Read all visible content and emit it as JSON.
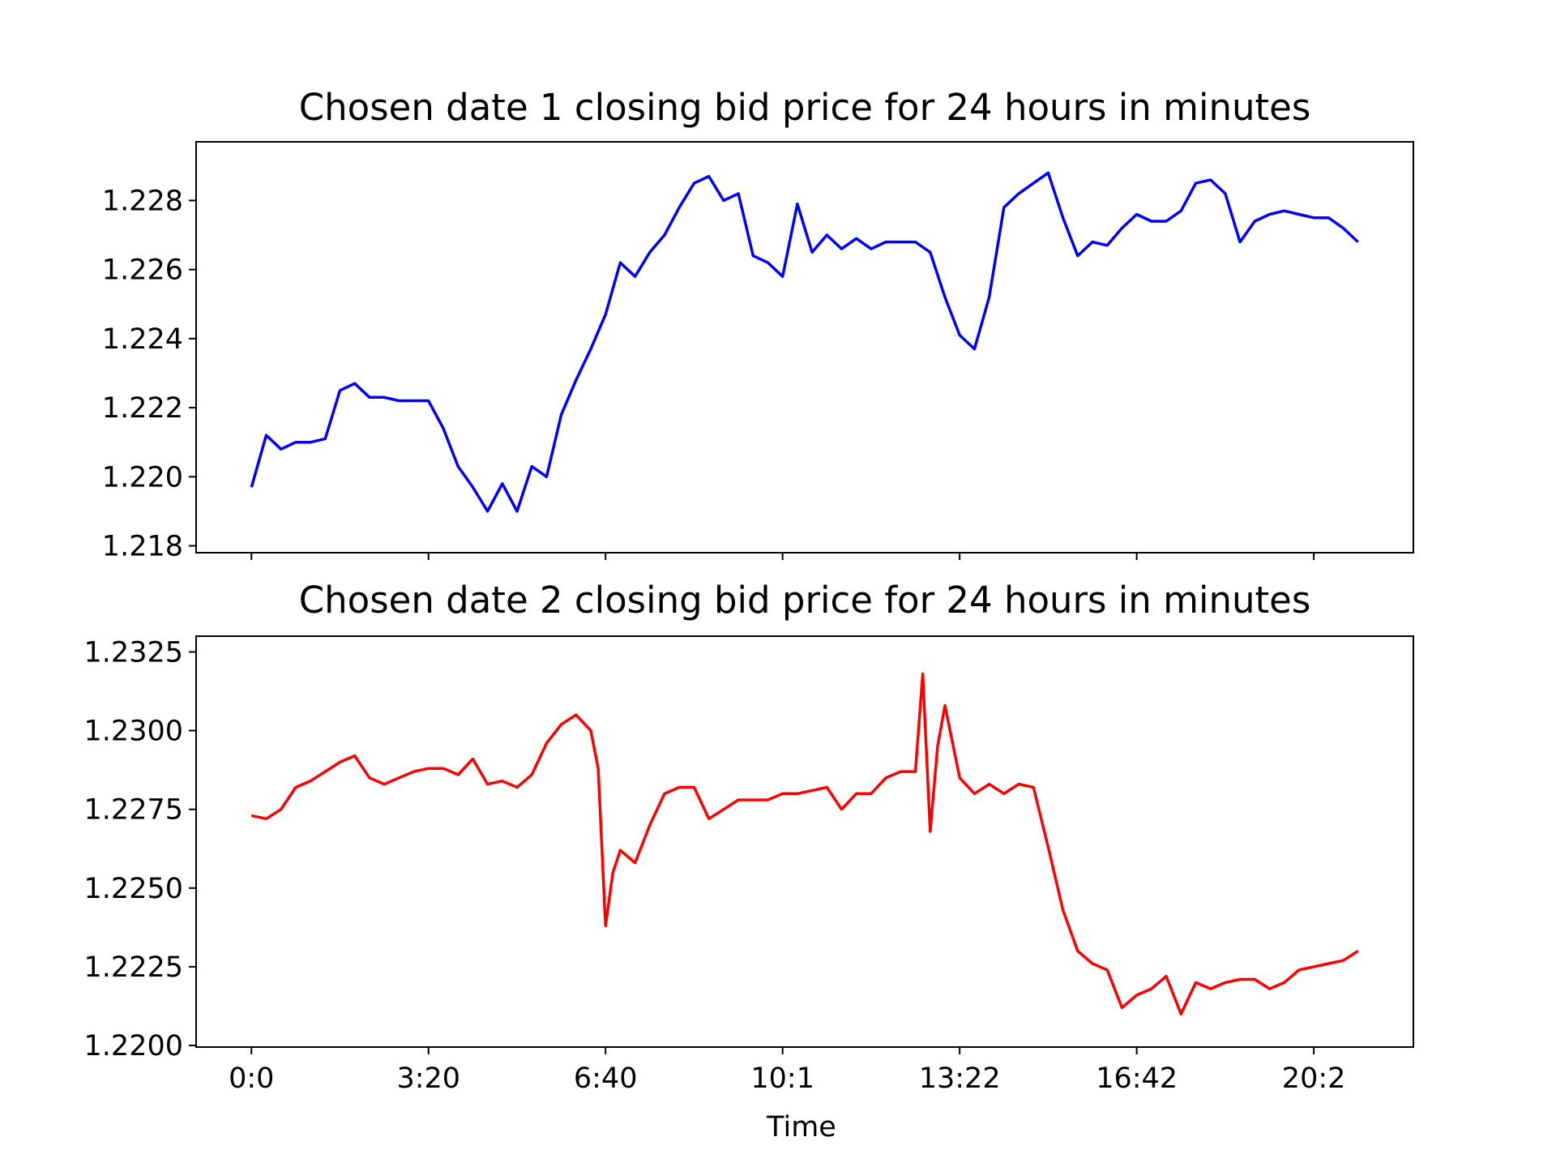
{
  "chart_data": [
    {
      "type": "line",
      "title": "Chosen date 1 closing bid price for 24 hours in minutes",
      "xlabel": "",
      "ylabel": "",
      "color": "#0000ff",
      "x_unit": "minutes",
      "xlim": [
        -75,
        1575
      ],
      "ylim": [
        1.2178,
        1.2297
      ],
      "yticks": [
        "1.218",
        "1.220",
        "1.222",
        "1.224",
        "1.226",
        "1.228"
      ],
      "ytick_values": [
        1.218,
        1.22,
        1.222,
        1.224,
        1.226,
        1.228
      ],
      "xtick_values": [
        0,
        240,
        480,
        720,
        960,
        1200,
        1440
      ],
      "xtick_labels_visible": false,
      "x": [
        0,
        20,
        40,
        60,
        80,
        100,
        120,
        140,
        160,
        180,
        200,
        220,
        240,
        260,
        280,
        300,
        320,
        340,
        360,
        380,
        400,
        420,
        440,
        460,
        480,
        500,
        520,
        540,
        560,
        580,
        600,
        620,
        640,
        660,
        680,
        700,
        720,
        740,
        760,
        780,
        800,
        820,
        840,
        860,
        880,
        900,
        920,
        940,
        960,
        980,
        1000,
        1020,
        1040,
        1060,
        1080,
        1100,
        1120,
        1140,
        1160,
        1180,
        1200,
        1220,
        1240,
        1260,
        1280,
        1300,
        1320,
        1340,
        1360,
        1380,
        1400,
        1420,
        1440,
        1460,
        1480,
        1500
      ],
      "y": [
        1.2197,
        1.2212,
        1.2208,
        1.221,
        1.221,
        1.2211,
        1.2225,
        1.2227,
        1.2223,
        1.2223,
        1.2222,
        1.2222,
        1.2222,
        1.2214,
        1.2203,
        1.2197,
        1.219,
        1.2198,
        1.219,
        1.2203,
        1.22,
        1.2218,
        1.2228,
        1.2237,
        1.2247,
        1.2262,
        1.2258,
        1.2265,
        1.227,
        1.2278,
        1.2285,
        1.2287,
        1.228,
        1.2282,
        1.2264,
        1.2262,
        1.2258,
        1.2279,
        1.2265,
        1.227,
        1.2266,
        1.2269,
        1.2266,
        1.2268,
        1.2268,
        1.2268,
        1.2265,
        1.2252,
        1.2241,
        1.2237,
        1.2252,
        1.2278,
        1.2282,
        1.2285,
        1.2288,
        1.2275,
        1.2264,
        1.2268,
        1.2267,
        1.2272,
        1.2276,
        1.2274,
        1.2274,
        1.2277,
        1.2285,
        1.2286,
        1.2282,
        1.2268,
        1.2274,
        1.2276,
        1.2277,
        1.2276,
        1.2275,
        1.2275,
        1.2272,
        1.2268
      ]
    },
    {
      "type": "line",
      "title": "Chosen date 2 closing bid price for 24 hours in minutes",
      "xlabel": "Time",
      "ylabel": "",
      "color": "#ff0000",
      "x_unit": "minutes",
      "xlim": [
        -75,
        1575
      ],
      "ylim": [
        1.21995,
        1.233
      ],
      "yticks": [
        "1.2200",
        "1.2225",
        "1.2250",
        "1.2275",
        "1.2300",
        "1.2325"
      ],
      "ytick_values": [
        1.22,
        1.2225,
        1.225,
        1.2275,
        1.23,
        1.2325
      ],
      "xtick_values": [
        0,
        240,
        480,
        720,
        960,
        1200,
        1440
      ],
      "xtick_labels": [
        "0:0",
        "3:20",
        "6:40",
        "10:1",
        "13:22",
        "16:42",
        "20:2"
      ],
      "x": [
        0,
        20,
        40,
        60,
        80,
        100,
        120,
        140,
        160,
        180,
        200,
        220,
        240,
        260,
        280,
        300,
        320,
        340,
        360,
        380,
        400,
        420,
        440,
        460,
        470,
        480,
        490,
        500,
        520,
        540,
        560,
        580,
        600,
        620,
        640,
        660,
        680,
        700,
        720,
        740,
        760,
        780,
        800,
        820,
        840,
        860,
        880,
        900,
        910,
        920,
        930,
        940,
        960,
        980,
        1000,
        1020,
        1040,
        1060,
        1080,
        1100,
        1120,
        1140,
        1160,
        1180,
        1200,
        1220,
        1240,
        1260,
        1280,
        1300,
        1320,
        1340,
        1360,
        1380,
        1400,
        1420,
        1440,
        1460,
        1480,
        1500
      ],
      "y": [
        1.2273,
        1.2272,
        1.2275,
        1.2282,
        1.2284,
        1.2287,
        1.229,
        1.2292,
        1.2285,
        1.2283,
        1.2285,
        1.2287,
        1.2288,
        1.2288,
        1.2286,
        1.2291,
        1.2283,
        1.2284,
        1.2282,
        1.2286,
        1.2296,
        1.2302,
        1.2305,
        1.23,
        1.2288,
        1.2238,
        1.2255,
        1.2262,
        1.2258,
        1.227,
        1.228,
        1.2282,
        1.2282,
        1.2272,
        1.2275,
        1.2278,
        1.2278,
        1.2278,
        1.228,
        1.228,
        1.2281,
        1.2282,
        1.2275,
        1.228,
        1.228,
        1.2285,
        1.2287,
        1.2287,
        1.2318,
        1.2268,
        1.2295,
        1.2308,
        1.2285,
        1.228,
        1.2283,
        1.228,
        1.2283,
        1.2282,
        1.2263,
        1.2243,
        1.223,
        1.2226,
        1.2224,
        1.2212,
        1.2216,
        1.2218,
        1.2222,
        1.221,
        1.222,
        1.2218,
        1.222,
        1.2221,
        1.2221,
        1.2218,
        1.222,
        1.2224,
        1.2225,
        1.2226,
        1.2227,
        1.223
      ]
    }
  ]
}
